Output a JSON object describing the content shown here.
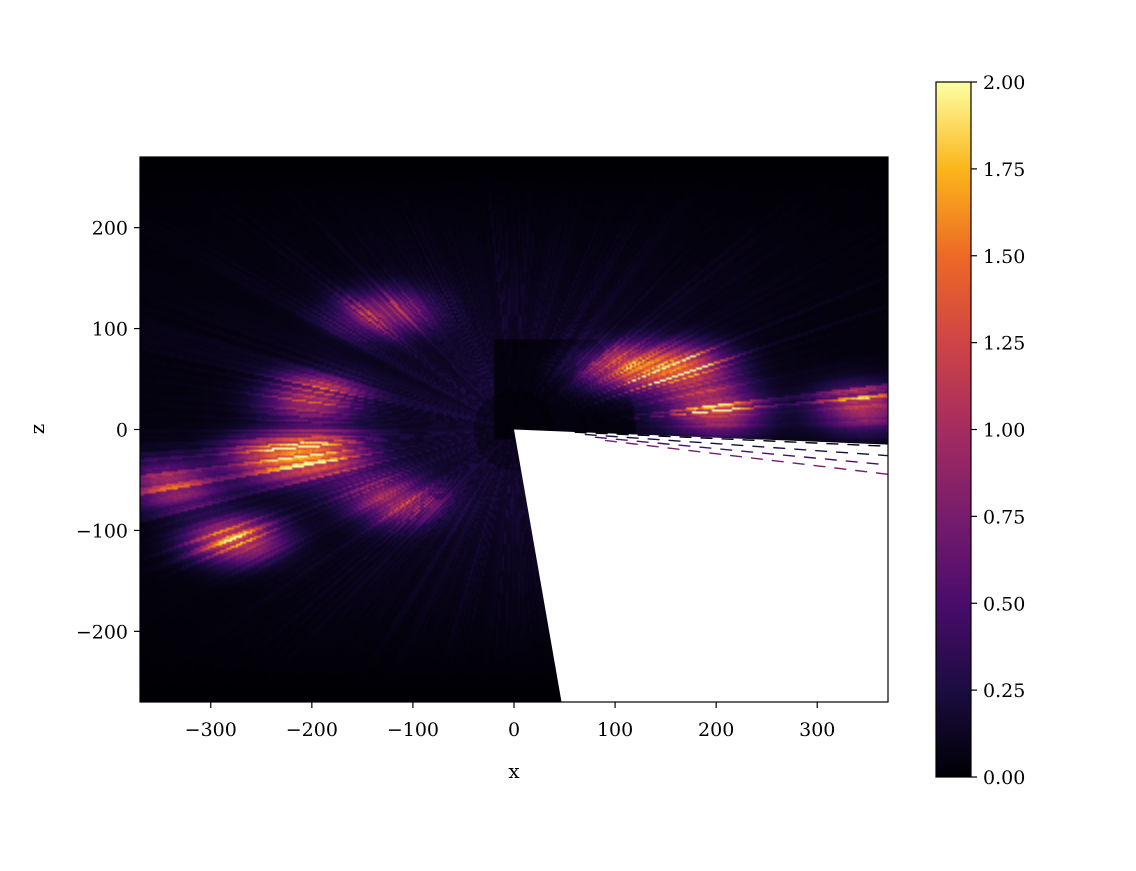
{
  "chart_data": {
    "type": "heatmap",
    "title": "",
    "xlabel": "x",
    "ylabel": "z",
    "xlim": [
      -370,
      370
    ],
    "ylim": [
      -270,
      270
    ],
    "x_ticks": [
      -300,
      -200,
      -100,
      0,
      100,
      200,
      300
    ],
    "x_tick_labels": [
      "−300",
      "−200",
      "−100",
      "0",
      "100",
      "200",
      "300"
    ],
    "y_ticks": [
      -200,
      -100,
      0,
      100,
      200
    ],
    "y_tick_labels": [
      "−200",
      "−100",
      "0",
      "100",
      "200"
    ],
    "colormap": "inferno",
    "colorbar": {
      "range": [
        0,
        2
      ],
      "ticks": [
        0,
        0.25,
        0.5,
        0.75,
        1.0,
        1.25,
        1.5,
        1.75,
        2.0
      ],
      "tick_labels": [
        "0.00",
        "0.25",
        "0.50",
        "0.75",
        "1.00",
        "1.25",
        "1.50",
        "1.75",
        "2.00"
      ]
    },
    "masked_region": {
      "description_color": "#ffffff",
      "polygon": [
        [
          0,
          0
        ],
        [
          370,
          -15
        ],
        [
          370,
          -270
        ],
        [
          47,
          -270
        ]
      ]
    },
    "hotspots": [
      {
        "x": 170,
        "z": 60,
        "value": 2.0
      },
      {
        "x": 200,
        "z": 18,
        "value": 2.0
      },
      {
        "x": 345,
        "z": 22,
        "value": 1.9
      },
      {
        "x": -200,
        "z": 30,
        "value": 1.6
      },
      {
        "x": -190,
        "z": -25,
        "value": 1.8
      },
      {
        "x": -240,
        "z": -30,
        "value": 1.6
      },
      {
        "x": -275,
        "z": -110,
        "value": 1.9
      },
      {
        "x": -340,
        "z": -55,
        "value": 1.5
      },
      {
        "x": -130,
        "z": 115,
        "value": 1.2
      },
      {
        "x": 110,
        "z": 60,
        "value": 1.5
      },
      {
        "x": -120,
        "z": -70,
        "value": 1.4
      }
    ]
  }
}
